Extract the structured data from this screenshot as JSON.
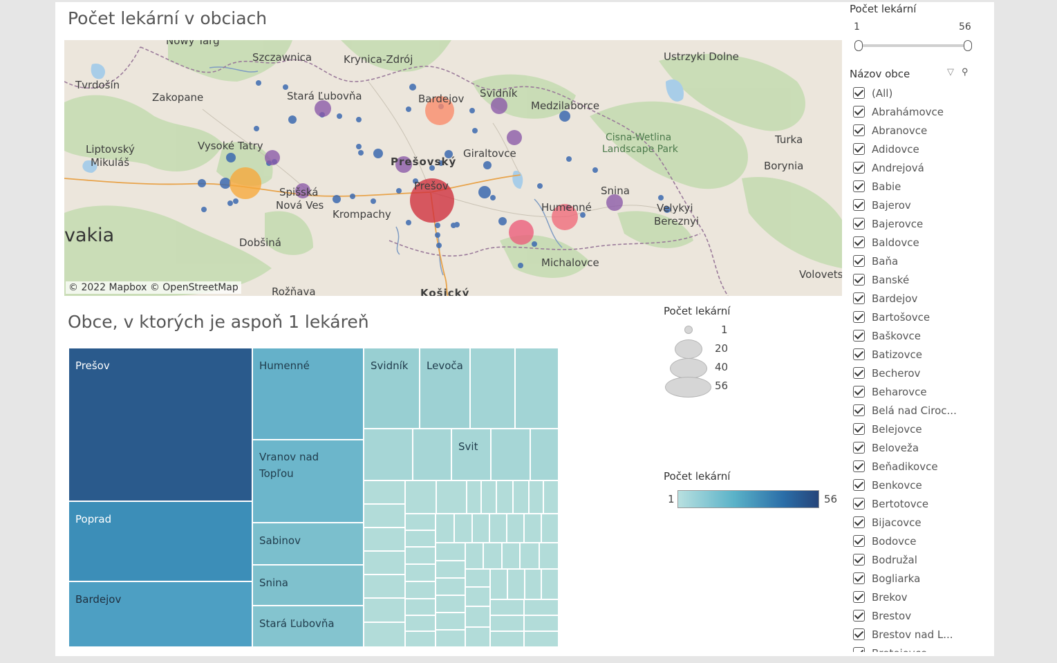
{
  "map_panel": {
    "title": "Počet lekární v obciach",
    "attribution": "© 2022 Mapbox © OpenStreetMap",
    "labels": {
      "nowy_targ": "Nowy Targ",
      "szczawnica": "Szczawnica",
      "krynica": "Krynica-Zdrój",
      "ustrzyki": "Ustrzyki Dolne",
      "tvrdosin": "Tvrdošín",
      "zakopane": "Zakopane",
      "stara_lubovna": "Stará Ľubovňa",
      "bardejov": "Bardejov",
      "svidnik": "Svidník",
      "medzilaborce": "Medzilaborce",
      "cisna": "Cisna-Wetlina",
      "landscape_park": "Landscape Park",
      "turka": "Turka",
      "liptovsky": "Liptovský",
      "mikulas": "Mikuláš",
      "vysoke_tatry": "Vysoké Tatry",
      "presovsky": "Prešovský",
      "giraltovce": "Giraltovce",
      "borynia": "Borynia",
      "presov": "Prešov",
      "spisska": "Spišská",
      "nova_ves": "Nová Ves",
      "snina": "Snina",
      "humenne": "Humenné",
      "velykyi": "Velykyi",
      "bereznyi": "Bereznyi",
      "vakia": "vakia",
      "krompachy": "Krompachy",
      "dobsina": "Dobšiná",
      "michalovce": "Michalovce",
      "volovets": "Volovets",
      "roznava": "Rožňava",
      "kosicky": "Košický"
    }
  },
  "treemap_panel": {
    "title": "Obce, v ktorých je aspoň 1 lekáreň",
    "cells": {
      "presov": "Prešov",
      "poprad": "Poprad",
      "bardejov": "Bardejov",
      "humenne": "Humenné",
      "vranov": "Vranov nad\nTopľou",
      "sabinov": "Sabinov",
      "snina": "Snina",
      "stara_lubovna": "Stará Ľubovňa",
      "svidnik": "Svidník",
      "levoca": "Levoča",
      "svit": "Svit"
    }
  },
  "size_legend": {
    "title": "Počet lekární",
    "values": [
      "1",
      "20",
      "40",
      "56"
    ]
  },
  "color_legend": {
    "title": "Počet lekární",
    "min": "1",
    "max": "56",
    "colors": [
      "#b8e0e0",
      "#5ab2c8",
      "#2b6ea8",
      "#26457a"
    ]
  },
  "range_filter": {
    "title": "Počet lekární",
    "min": "1",
    "max": "56"
  },
  "name_filter": {
    "title": "Názov obce",
    "items": [
      "(All)",
      "Abrahámovce",
      "Abranovce",
      "Adidovce",
      "Andrejová",
      "Babie",
      "Bajerov",
      "Bajerovce",
      "Baldovce",
      "Baňa",
      "Banské",
      "Bardejov",
      "Bartošovce",
      "Baškovce",
      "Batizovce",
      "Becherov",
      "Beharovce",
      "Belá nad Ciroc...",
      "Belejovce",
      "Beloveža",
      "Beňadikovce",
      "Benkovce",
      "Bertotovce",
      "Bijacovce",
      "Bodovce",
      "Bodružal",
      "Bogliarka",
      "Brekov",
      "Brestov",
      "Brestov nad L...",
      "Bretejovce"
    ]
  }
}
